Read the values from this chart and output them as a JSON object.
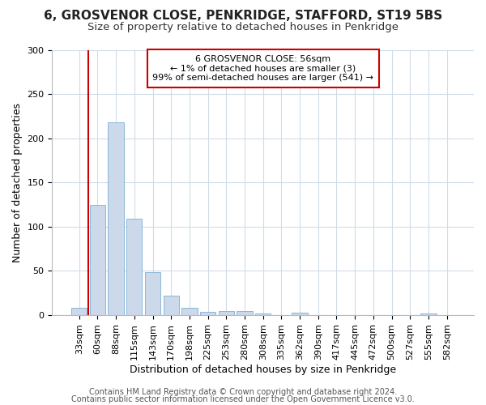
{
  "title1": "6, GROSVENOR CLOSE, PENKRIDGE, STAFFORD, ST19 5BS",
  "title2": "Size of property relative to detached houses in Penkridge",
  "xlabel": "Distribution of detached houses by size in Penkridge",
  "ylabel": "Number of detached properties",
  "bar_labels": [
    "33sqm",
    "60sqm",
    "88sqm",
    "115sqm",
    "143sqm",
    "170sqm",
    "198sqm",
    "225sqm",
    "253sqm",
    "280sqm",
    "308sqm",
    "335sqm",
    "362sqm",
    "390sqm",
    "417sqm",
    "445sqm",
    "472sqm",
    "500sqm",
    "527sqm",
    "555sqm",
    "582sqm"
  ],
  "bar_values": [
    8,
    125,
    218,
    109,
    49,
    22,
    8,
    4,
    5,
    5,
    2,
    0,
    3,
    0,
    0,
    0,
    0,
    0,
    0,
    2,
    0
  ],
  "bar_color": "#ccd9ea",
  "bar_edge_color": "#7bafd4",
  "ylim": [
    0,
    300
  ],
  "yticks": [
    0,
    50,
    100,
    150,
    200,
    250,
    300
  ],
  "annotation_text": "6 GROSVENOR CLOSE: 56sqm\n← 1% of detached houses are smaller (3)\n99% of semi-detached houses are larger (541) →",
  "annotation_box_color": "#ffffff",
  "annotation_box_edge": "#cc0000",
  "vline_color": "#cc0000",
  "footer1": "Contains HM Land Registry data © Crown copyright and database right 2024.",
  "footer2": "Contains public sector information licensed under the Open Government Licence v3.0.",
  "bg_color": "#ffffff",
  "plot_bg_color": "#ffffff",
  "grid_color": "#d0dce8",
  "title1_fontsize": 11,
  "title2_fontsize": 9.5,
  "xlabel_fontsize": 9,
  "ylabel_fontsize": 9,
  "tick_fontsize": 8,
  "ann_fontsize": 8,
  "footer_fontsize": 7
}
